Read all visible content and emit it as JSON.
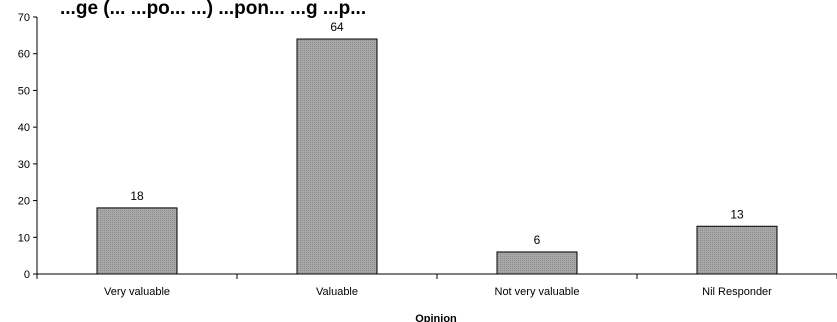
{
  "chart_data": {
    "type": "bar",
    "title": "...ge (... ...po... ...) ...pon... ...g ...p...",
    "categories": [
      "Very valuable",
      "Valuable",
      "Not very valuable",
      "Nil Responder"
    ],
    "values": [
      18,
      64,
      6,
      13
    ],
    "data_labels": [
      "18",
      "64",
      "6",
      "13"
    ],
    "ylim": [
      0,
      70
    ],
    "yticks": [
      "0",
      "10",
      "20",
      "30",
      "40",
      "50",
      "60",
      "70"
    ],
    "xlabel": "Opinion",
    "ylabel": "",
    "grid": false,
    "legend": "none",
    "colors": {
      "bar_fill": "#a6a6a6",
      "bar_stroke": "#000000",
      "axis": "#000000"
    }
  }
}
